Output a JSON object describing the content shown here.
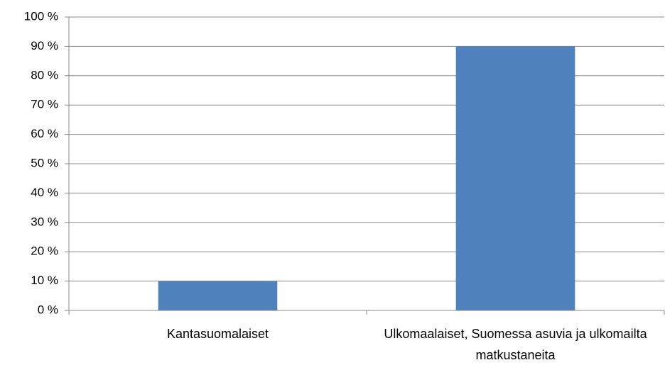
{
  "chart_data": {
    "type": "bar",
    "categories": [
      "Kantasuomalaiset",
      "Ulkomaalaiset, Suomessa asuvia ja ulkomailta matkustaneita"
    ],
    "values": [
      10,
      90
    ],
    "color": "#4f81bd",
    "ylim": [
      0,
      100
    ],
    "yticks": [
      {
        "value": 0,
        "label": "0 %"
      },
      {
        "value": 10,
        "label": "10 %"
      },
      {
        "value": 20,
        "label": "20 %"
      },
      {
        "value": 30,
        "label": "30 %"
      },
      {
        "value": 40,
        "label": "40 %"
      },
      {
        "value": 50,
        "label": "50 %"
      },
      {
        "value": 60,
        "label": "60 %"
      },
      {
        "value": 70,
        "label": "70 %"
      },
      {
        "value": 80,
        "label": "80 %"
      },
      {
        "value": 90,
        "label": "90 %"
      },
      {
        "value": 100,
        "label": "100 %"
      }
    ],
    "grid": true
  }
}
